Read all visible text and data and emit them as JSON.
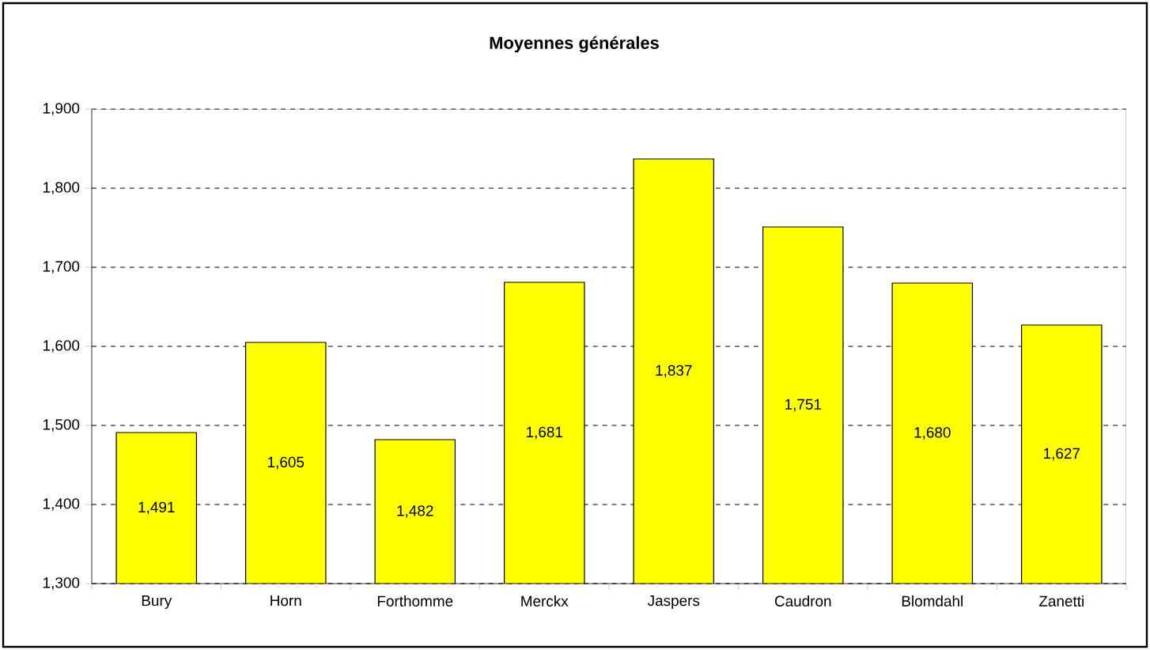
{
  "chart_data": {
    "type": "bar",
    "title": "Moyennes générales",
    "categories": [
      "Bury",
      "Horn",
      "Forthomme",
      "Merckx",
      "Jaspers",
      "Caudron",
      "Blomdahl",
      "Zanetti"
    ],
    "values": [
      1491,
      1605,
      1482,
      1681,
      1837,
      1751,
      1680,
      1627
    ],
    "value_labels": [
      "1,491",
      "1,605",
      "1,482",
      "1,681",
      "1,837",
      "1,751",
      "1,680",
      "1,627"
    ],
    "color": "#ffff00",
    "ylim": [
      1300,
      1900
    ],
    "yticks": [
      {
        "value": 1300,
        "label": "1,300"
      },
      {
        "value": 1400,
        "label": "1,400"
      },
      {
        "value": 1500,
        "label": "1,500"
      },
      {
        "value": 1600,
        "label": "1,600"
      },
      {
        "value": 1700,
        "label": "1,700"
      },
      {
        "value": 1800,
        "label": "1,800"
      },
      {
        "value": 1900,
        "label": "1,900"
      }
    ],
    "grid": "y"
  }
}
